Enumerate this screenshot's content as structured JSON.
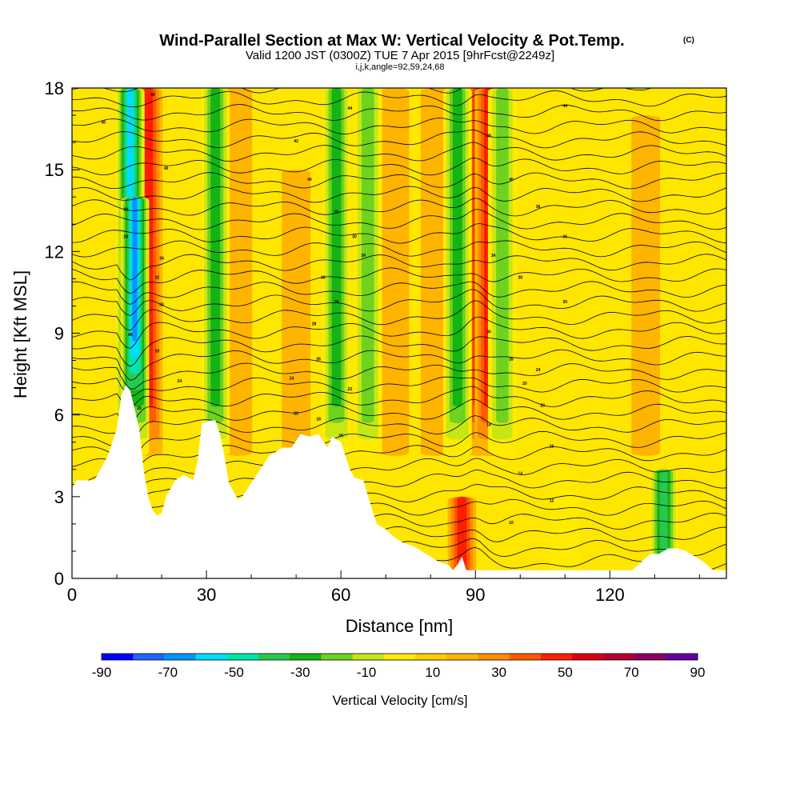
{
  "header": {
    "title": "Wind-Parallel Section at Max W: Vertical Velocity & Pot.Temp.",
    "title_note": "(C)",
    "subtitle": "Valid 1200 JST (0300Z) TUE 7 Apr 2015 [9hrFcst@2249z]",
    "subtitle2": "i,j,k,angle=92,59,24,68"
  },
  "chart_data": {
    "type": "heatmap",
    "xlabel": "Distance [nm]",
    "ylabel": "Height [Kft MSL]",
    "xlim": [
      0,
      146
    ],
    "ylim": [
      0,
      18
    ],
    "x_ticks": [
      0,
      30,
      60,
      90,
      120
    ],
    "y_ticks": [
      0,
      3,
      6,
      9,
      12,
      15,
      18
    ],
    "field": "vertical velocity (filled) and potential temperature (contours)",
    "background_w": 10,
    "updraft_columns": [
      {
        "x": 17,
        "top": 18,
        "w": 58
      },
      {
        "x": 37,
        "top": 18,
        "w": 28
      },
      {
        "x": 50,
        "top": 15,
        "w": 22
      },
      {
        "x": 72,
        "top": 18,
        "w": 25
      },
      {
        "x": 81,
        "top": 18,
        "w": 25
      },
      {
        "x": 91,
        "top": 18,
        "w": 62
      },
      {
        "x": 93,
        "top": 18,
        "w": 55
      },
      {
        "x": 128,
        "top": 17,
        "w": 20
      },
      {
        "x": 87,
        "top": 3,
        "w": 55
      }
    ],
    "downdraft_columns": [
      {
        "x": 13,
        "top": 18,
        "w": -62
      },
      {
        "x": 14,
        "top": 14,
        "w": -75
      },
      {
        "x": 32,
        "top": 18,
        "w": -32
      },
      {
        "x": 59,
        "top": 18,
        "w": -35
      },
      {
        "x": 66,
        "top": 18,
        "w": -22
      },
      {
        "x": 86,
        "top": 18,
        "w": -38
      },
      {
        "x": 96,
        "top": 18,
        "w": -28
      },
      {
        "x": 132,
        "top": 4,
        "w": -45
      },
      {
        "x": 110,
        "top": 4,
        "w": -8
      }
    ],
    "terrain_top_kft": [
      [
        0,
        3.3
      ],
      [
        1,
        3.6
      ],
      [
        2,
        3.6
      ],
      [
        5,
        3.6
      ],
      [
        8,
        4.5
      ],
      [
        10,
        5.5
      ],
      [
        11,
        6.7
      ],
      [
        12,
        7.1
      ],
      [
        13,
        6.9
      ],
      [
        14,
        6.2
      ],
      [
        15,
        5.5
      ],
      [
        16,
        4.0
      ],
      [
        17,
        3.0
      ],
      [
        18,
        2.5
      ],
      [
        19,
        2.3
      ],
      [
        20,
        2.4
      ],
      [
        21,
        3.0
      ],
      [
        23,
        3.6
      ],
      [
        25,
        3.8
      ],
      [
        27,
        3.6
      ],
      [
        28,
        4.3
      ],
      [
        29,
        5.7
      ],
      [
        31,
        5.8
      ],
      [
        32,
        5.8
      ],
      [
        33,
        5.3
      ],
      [
        34,
        4.5
      ],
      [
        35,
        3.5
      ],
      [
        37,
        2.9
      ],
      [
        38,
        3.0
      ],
      [
        40,
        3.5
      ],
      [
        42,
        4.0
      ],
      [
        44,
        4.5
      ],
      [
        47,
        4.8
      ],
      [
        49,
        4.8
      ],
      [
        51,
        5.3
      ],
      [
        53,
        5.2
      ],
      [
        55,
        5.3
      ],
      [
        57,
        4.8
      ],
      [
        58,
        5.2
      ],
      [
        60,
        5.0
      ],
      [
        61,
        4.5
      ],
      [
        62,
        4.0
      ],
      [
        63,
        3.7
      ],
      [
        65,
        3.6
      ],
      [
        67,
        2.5
      ],
      [
        68,
        2.0
      ],
      [
        70,
        1.8
      ],
      [
        72,
        1.5
      ],
      [
        74,
        1.3
      ],
      [
        76,
        1.2
      ],
      [
        78,
        1.0
      ],
      [
        80,
        0.8
      ],
      [
        82,
        0.6
      ],
      [
        84,
        0.5
      ],
      [
        85,
        0.3
      ],
      [
        86,
        0.5
      ],
      [
        87,
        0.8
      ],
      [
        88,
        0.3
      ],
      [
        90,
        0.3
      ],
      [
        95,
        0.3
      ],
      [
        100,
        0.3
      ],
      [
        110,
        0.3
      ],
      [
        125,
        0.3
      ],
      [
        127,
        0.6
      ],
      [
        129,
        0.9
      ],
      [
        131,
        0.9
      ],
      [
        133,
        1.1
      ],
      [
        135,
        1.1
      ],
      [
        137,
        1.0
      ],
      [
        139,
        0.8
      ],
      [
        141,
        0.6
      ],
      [
        143,
        0.3
      ],
      [
        146,
        0.3
      ]
    ],
    "contour_labels": [
      {
        "x": 18,
        "y": 17.7,
        "text": "44"
      },
      {
        "x": 7,
        "y": 16.7,
        "text": "40"
      },
      {
        "x": 62,
        "y": 17.2,
        "text": "44"
      },
      {
        "x": 110,
        "y": 17.3,
        "text": "44"
      },
      {
        "x": 50,
        "y": 16.0,
        "text": "42"
      },
      {
        "x": 93,
        "y": 16.2,
        "text": "48"
      },
      {
        "x": 21,
        "y": 15.0,
        "text": "40"
      },
      {
        "x": 53,
        "y": 14.6,
        "text": "40"
      },
      {
        "x": 98,
        "y": 14.6,
        "text": "40"
      },
      {
        "x": 59,
        "y": 13.4,
        "text": "36"
      },
      {
        "x": 104,
        "y": 13.6,
        "text": "36"
      },
      {
        "x": 12,
        "y": 13.5,
        "text": "34"
      },
      {
        "x": 12,
        "y": 12.5,
        "text": "28"
      },
      {
        "x": 63,
        "y": 12.5,
        "text": "30"
      },
      {
        "x": 110,
        "y": 12.5,
        "text": "36"
      },
      {
        "x": 20,
        "y": 11.7,
        "text": "34"
      },
      {
        "x": 65,
        "y": 11.8,
        "text": "34"
      },
      {
        "x": 94,
        "y": 11.8,
        "text": "34"
      },
      {
        "x": 19,
        "y": 11.0,
        "text": "32"
      },
      {
        "x": 56,
        "y": 11.0,
        "text": "30"
      },
      {
        "x": 100,
        "y": 11.0,
        "text": "38"
      },
      {
        "x": 20,
        "y": 10.0,
        "text": "30"
      },
      {
        "x": 59,
        "y": 10.1,
        "text": "30"
      },
      {
        "x": 110,
        "y": 10.1,
        "text": "30"
      },
      {
        "x": 54,
        "y": 9.3,
        "text": "28"
      },
      {
        "x": 13,
        "y": 8.9,
        "text": "48"
      },
      {
        "x": 93,
        "y": 9.0,
        "text": "30"
      },
      {
        "x": 19,
        "y": 8.3,
        "text": "20"
      },
      {
        "x": 55,
        "y": 8.0,
        "text": "26"
      },
      {
        "x": 98,
        "y": 8.0,
        "text": "28"
      },
      {
        "x": 104,
        "y": 7.6,
        "text": "24"
      },
      {
        "x": 24,
        "y": 7.2,
        "text": "24"
      },
      {
        "x": 49,
        "y": 7.3,
        "text": "24"
      },
      {
        "x": 62,
        "y": 6.9,
        "text": "22"
      },
      {
        "x": 101,
        "y": 7.1,
        "text": "20"
      },
      {
        "x": 15,
        "y": 6.2,
        "text": "20"
      },
      {
        "x": 105,
        "y": 6.3,
        "text": "20"
      },
      {
        "x": 50,
        "y": 6.0,
        "text": "20"
      },
      {
        "x": 55,
        "y": 5.8,
        "text": "18"
      },
      {
        "x": 93,
        "y": 5.6,
        "text": "18"
      },
      {
        "x": 60,
        "y": 5.2,
        "text": "16"
      },
      {
        "x": 107,
        "y": 4.8,
        "text": "16"
      },
      {
        "x": 100,
        "y": 3.8,
        "text": "14"
      },
      {
        "x": 107,
        "y": 2.8,
        "text": "12"
      },
      {
        "x": 98,
        "y": 2.0,
        "text": "10"
      }
    ]
  },
  "colorbar": {
    "label": "Vertical Velocity [cm/s]",
    "tick_labels": [
      "-90",
      "-70",
      "-50",
      "-30",
      "-10",
      "10",
      "30",
      "50",
      "70",
      "90"
    ],
    "levels": [
      -90,
      -80,
      -70,
      -60,
      -50,
      -40,
      -30,
      -20,
      -10,
      0,
      10,
      20,
      30,
      40,
      50,
      60,
      70,
      80,
      90
    ],
    "colors": [
      "#0000ff",
      "#1e64ff",
      "#0096ff",
      "#00dcff",
      "#00e6aa",
      "#28c850",
      "#14b414",
      "#6ed21e",
      "#c8e614",
      "#ffeb00",
      "#ffcd00",
      "#ffb400",
      "#ff8c00",
      "#ff5a00",
      "#ff1e00",
      "#dc0014",
      "#b40032",
      "#8c0064",
      "#6400a0"
    ]
  }
}
